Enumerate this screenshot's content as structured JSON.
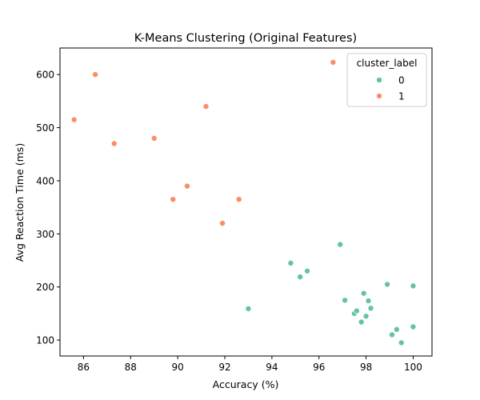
{
  "chart_data": {
    "type": "scatter",
    "title": "K-Means Clustering (Original Features)",
    "xlabel": "Accuracy (%)",
    "ylabel": "Avg Reaction Time (ms)",
    "xlim": [
      85,
      100.8
    ],
    "ylim": [
      70,
      650
    ],
    "xticks": [
      86,
      88,
      90,
      92,
      94,
      96,
      98,
      100
    ],
    "yticks": [
      100,
      200,
      300,
      400,
      500,
      600
    ],
    "grid": false,
    "legend": {
      "title": "cluster_label",
      "placement": "top-right",
      "entries": [
        "0",
        "1"
      ]
    },
    "series": [
      {
        "name": "0",
        "color": "#66c2a5",
        "points": [
          [
            93.0,
            159
          ],
          [
            94.8,
            245
          ],
          [
            95.2,
            219
          ],
          [
            95.5,
            230
          ],
          [
            96.9,
            280
          ],
          [
            97.1,
            175
          ],
          [
            97.5,
            150
          ],
          [
            97.6,
            155
          ],
          [
            97.8,
            134
          ],
          [
            97.9,
            188
          ],
          [
            98.0,
            145
          ],
          [
            98.1,
            174
          ],
          [
            98.2,
            160
          ],
          [
            98.9,
            205
          ],
          [
            99.1,
            110
          ],
          [
            99.3,
            120
          ],
          [
            99.5,
            95
          ],
          [
            100.0,
            125
          ],
          [
            100.0,
            202
          ]
        ]
      },
      {
        "name": "1",
        "color": "#fc8d62",
        "points": [
          [
            85.6,
            515
          ],
          [
            86.5,
            600
          ],
          [
            87.3,
            470
          ],
          [
            89.0,
            480
          ],
          [
            89.8,
            365
          ],
          [
            90.4,
            390
          ],
          [
            91.2,
            540
          ],
          [
            91.9,
            320
          ],
          [
            92.6,
            365
          ],
          [
            96.6,
            623
          ]
        ]
      }
    ]
  }
}
